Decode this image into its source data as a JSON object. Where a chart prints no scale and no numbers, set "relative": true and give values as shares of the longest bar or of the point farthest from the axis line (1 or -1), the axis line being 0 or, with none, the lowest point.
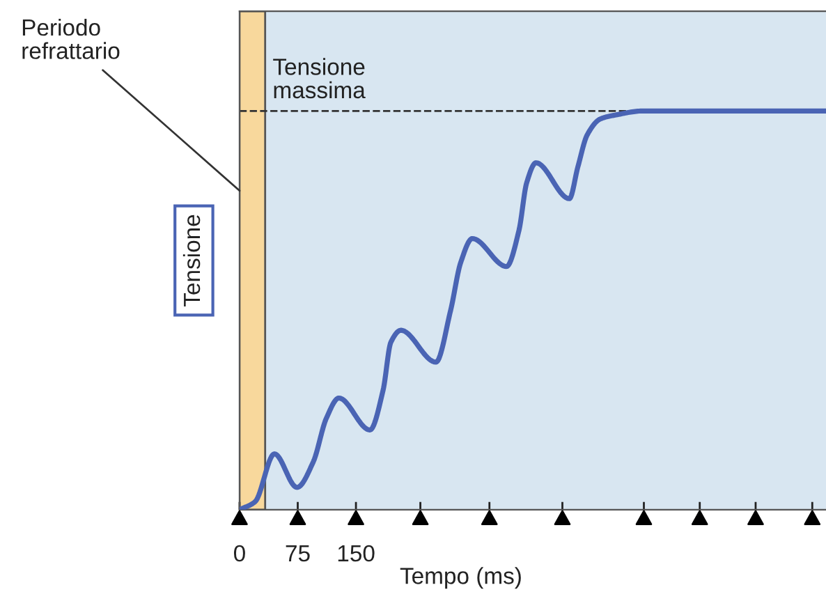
{
  "chart_data": {
    "type": "line",
    "relative": true,
    "xlabel": "Tempo (ms)",
    "ylabel": "Tensione",
    "x": [
      0,
      20,
      45,
      74,
      95,
      112,
      128,
      168,
      185,
      195,
      208,
      253,
      272,
      285,
      300,
      344,
      360,
      370,
      382,
      425,
      436,
      448,
      465,
      485,
      520,
      761
    ],
    "series": [
      {
        "color": "#4a64b4",
        "values": [
          0,
          0.02,
          0.14,
          0.056,
          0.12,
          0.23,
          0.28,
          0.2,
          0.3,
          0.42,
          0.45,
          0.37,
          0.5,
          0.62,
          0.68,
          0.61,
          0.7,
          0.82,
          0.87,
          0.78,
          0.86,
          0.94,
          0.98,
          0.99,
          1,
          1
        ]
      }
    ],
    "xlim": [
      0,
      761
    ],
    "xticks": [
      0,
      75,
      150,
      {
        "value": 233,
        "label": null
      },
      {
        "value": 322,
        "label": null
      },
      {
        "value": 416,
        "label": null
      },
      {
        "value": 521,
        "label": null
      },
      {
        "value": 593,
        "label": null
      },
      {
        "value": 665,
        "label": null
      },
      {
        "value": 738,
        "label": null
      }
    ],
    "ref_lines": [
      {
        "axis": "y",
        "value": 1,
        "label": "Tensione massima",
        "line_style": "dashed",
        "color": "#333333"
      }
    ],
    "bands": [
      {
        "axis": "x",
        "from": 0,
        "to": 33,
        "label": "Periodo refrattario",
        "color": "#f8d89c"
      }
    ],
    "tick_labels": "x",
    "grid": false,
    "legend": false,
    "marker": "none",
    "line_style": "solid"
  }
}
